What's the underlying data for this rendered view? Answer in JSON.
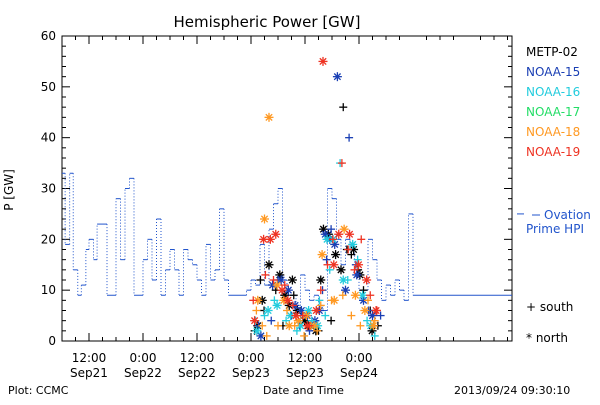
{
  "chart_data": {
    "type": "scatter",
    "title": "Hemispheric Power [GW]",
    "ylabel": "P [GW]",
    "xlabel": "Date and Time",
    "x_unit": "hours since 2013-09-21 00:00",
    "xlim": [
      6,
      106
    ],
    "ylim": [
      0,
      60
    ],
    "y_ticks": [
      0,
      10,
      20,
      30,
      40,
      50,
      60
    ],
    "x_ticks": [
      {
        "x": 12,
        "time": "12:00",
        "date": "Sep21"
      },
      {
        "x": 24,
        "time": "0:00",
        "date": "Sep22"
      },
      {
        "x": 36,
        "time": "12:00",
        "date": "Sep22"
      },
      {
        "x": 48,
        "time": "0:00",
        "date": "Sep23"
      },
      {
        "x": 60,
        "time": "12:00",
        "date": "Sep23"
      },
      {
        "x": 72,
        "time": "0:00",
        "date": "Sep24"
      }
    ],
    "grid": false,
    "legend_position": "right",
    "ovation": {
      "name": "Ovation Prime HPI",
      "label_line1": "Ovation",
      "label_line2": "Prime HPI",
      "color": "#2255cc",
      "steps": [
        [
          6.0,
          33
        ],
        [
          6.7,
          19
        ],
        [
          7.7,
          33
        ],
        [
          8.5,
          14
        ],
        [
          9.5,
          9
        ],
        [
          10.3,
          11
        ],
        [
          11.3,
          18
        ],
        [
          12.0,
          20
        ],
        [
          13.0,
          16
        ],
        [
          13.8,
          23
        ],
        [
          16.0,
          9
        ],
        [
          18.0,
          28
        ],
        [
          19.0,
          16
        ],
        [
          20.0,
          30
        ],
        [
          21.0,
          32
        ],
        [
          22.0,
          9
        ],
        [
          24.0,
          16
        ],
        [
          25.0,
          20
        ],
        [
          26.0,
          12
        ],
        [
          27.0,
          24
        ],
        [
          28.0,
          9
        ],
        [
          29.0,
          14
        ],
        [
          30.0,
          18
        ],
        [
          31.0,
          14
        ],
        [
          32.0,
          9
        ],
        [
          33.0,
          18
        ],
        [
          34.0,
          16
        ],
        [
          35.0,
          15
        ],
        [
          36.0,
          12
        ],
        [
          37.0,
          9
        ],
        [
          38.0,
          19
        ],
        [
          39.0,
          12
        ],
        [
          40.0,
          14
        ],
        [
          41.0,
          26
        ],
        [
          42.0,
          12
        ],
        [
          43.0,
          9
        ],
        [
          47.0,
          10
        ],
        [
          48.0,
          12
        ],
        [
          49.0,
          11
        ],
        [
          50.0,
          19
        ],
        [
          51.0,
          11
        ],
        [
          52.0,
          22
        ],
        [
          53.0,
          27
        ],
        [
          54.0,
          30
        ],
        [
          55.0,
          12
        ],
        [
          56.0,
          9
        ],
        [
          58.0,
          4
        ],
        [
          59.0,
          13
        ],
        [
          60.0,
          10
        ],
        [
          61.0,
          8
        ],
        [
          62.0,
          9
        ],
        [
          63.0,
          7
        ],
        [
          64.0,
          6
        ],
        [
          65.0,
          30
        ],
        [
          66.0,
          28
        ],
        [
          67.0,
          20
        ],
        [
          68.0,
          15
        ],
        [
          69.0,
          20
        ],
        [
          70.0,
          18
        ],
        [
          71.0,
          14
        ],
        [
          72.0,
          10
        ],
        [
          74.0,
          20
        ],
        [
          75.0,
          16
        ],
        [
          76.0,
          12
        ],
        [
          77.0,
          8
        ],
        [
          78.0,
          11
        ],
        [
          79.0,
          9
        ],
        [
          80.0,
          12
        ],
        [
          81.0,
          10
        ],
        [
          82.0,
          8
        ],
        [
          83.0,
          25
        ],
        [
          84.0,
          9
        ]
      ]
    },
    "series": [
      {
        "name": "METP-02",
        "color": "#000000",
        "south": [
          [
            48.8,
            2
          ],
          [
            50.1,
            12
          ],
          [
            50.9,
            6
          ],
          [
            53.5,
            10
          ],
          [
            55.1,
            3
          ],
          [
            57.5,
            9
          ],
          [
            59.5,
            5
          ],
          [
            61.3,
            3
          ],
          [
            63.0,
            2
          ],
          [
            65.8,
            4
          ],
          [
            68.5,
            46
          ],
          [
            69.3,
            18
          ],
          [
            70.3,
            17
          ],
          [
            71.8,
            14
          ],
          [
            73.0,
            10
          ],
          [
            74.5,
            6
          ],
          [
            76.2,
            3
          ]
        ],
        "north": [
          [
            49.5,
            3
          ],
          [
            50.5,
            8
          ],
          [
            52.0,
            15
          ],
          [
            54.4,
            13
          ],
          [
            55.5,
            9
          ],
          [
            56.5,
            7
          ],
          [
            57.2,
            12
          ],
          [
            58.3,
            6
          ],
          [
            59.9,
            4
          ],
          [
            60.7,
            3
          ],
          [
            62.4,
            2
          ],
          [
            63.5,
            12
          ],
          [
            64.1,
            22
          ],
          [
            65.2,
            21
          ],
          [
            66.8,
            17
          ],
          [
            68.0,
            14
          ],
          [
            70.8,
            18
          ],
          [
            72.2,
            13
          ],
          [
            74.9,
            2
          ]
        ]
      },
      {
        "name": "NOAA-15",
        "color": "#1a3fb4",
        "south": [
          [
            49.7,
            3
          ],
          [
            52.5,
            4
          ],
          [
            54.0,
            12
          ],
          [
            57.0,
            5
          ],
          [
            58.8,
            3
          ],
          [
            61.0,
            2
          ],
          [
            63.9,
            10
          ],
          [
            64.8,
            16
          ],
          [
            65.8,
            22
          ],
          [
            69.8,
            40
          ],
          [
            71.3,
            15
          ],
          [
            74.1,
            6
          ],
          [
            76.8,
            5
          ]
        ],
        "north": [
          [
            50.2,
            1
          ],
          [
            52.8,
            11
          ],
          [
            54.7,
            12
          ],
          [
            56.3,
            10
          ],
          [
            57.8,
            7
          ],
          [
            59.2,
            6
          ],
          [
            60.5,
            5
          ],
          [
            62.2,
            4
          ],
          [
            63.2,
            6
          ],
          [
            64.5,
            21
          ],
          [
            65.5,
            20
          ],
          [
            66.6,
            19
          ],
          [
            67.2,
            52
          ],
          [
            69.0,
            10
          ],
          [
            71.5,
            13
          ],
          [
            73.0,
            8
          ],
          [
            75.0,
            5
          ]
        ]
      },
      {
        "name": "NOAA-16",
        "color": "#22ccdd",
        "south": [
          [
            49.0,
            4
          ],
          [
            51.0,
            5
          ],
          [
            53.2,
            8
          ],
          [
            55.8,
            4
          ],
          [
            58.2,
            2
          ],
          [
            61.5,
            4
          ],
          [
            63.2,
            8
          ],
          [
            64.5,
            5
          ],
          [
            65.5,
            14
          ],
          [
            67.8,
            35
          ],
          [
            69.5,
            12
          ],
          [
            71.7,
            16
          ],
          [
            73.8,
            4
          ],
          [
            75.5,
            1
          ]
        ],
        "north": [
          [
            49.3,
            2
          ],
          [
            51.8,
            6
          ],
          [
            53.8,
            7
          ],
          [
            56.8,
            5
          ],
          [
            59.0,
            3
          ],
          [
            60.8,
            6
          ],
          [
            62.8,
            3
          ],
          [
            64.9,
            20
          ],
          [
            66.2,
            20
          ],
          [
            68.5,
            12
          ],
          [
            70.6,
            19
          ],
          [
            72.8,
            9
          ],
          [
            74.6,
            3
          ]
        ]
      },
      {
        "name": "NOAA-17",
        "color": "#22dd66",
        "south": [],
        "north": []
      },
      {
        "name": "NOAA-18",
        "color": "#ff9922",
        "south": [
          [
            49.2,
            6
          ],
          [
            50.5,
            3
          ],
          [
            51.5,
            1
          ],
          [
            54.0,
            3
          ],
          [
            56.0,
            6
          ],
          [
            57.7,
            3
          ],
          [
            59.8,
            1
          ],
          [
            61.2,
            3
          ],
          [
            62.7,
            2
          ],
          [
            63.5,
            7
          ],
          [
            65.9,
            8
          ],
          [
            68.4,
            9
          ],
          [
            70.3,
            5
          ],
          [
            72.3,
            3
          ],
          [
            74.0,
            8
          ],
          [
            75.5,
            4
          ]
        ],
        "north": [
          [
            49.5,
            8
          ],
          [
            51.0,
            24
          ],
          [
            52.0,
            44
          ],
          [
            53.8,
            11
          ],
          [
            55.3,
            8
          ],
          [
            56.5,
            3
          ],
          [
            58.5,
            4
          ],
          [
            60.3,
            5
          ],
          [
            62.0,
            3
          ],
          [
            63.8,
            17
          ],
          [
            66.5,
            8
          ],
          [
            68.7,
            22
          ],
          [
            71.2,
            9
          ],
          [
            73.3,
            6
          ],
          [
            75.2,
            3
          ]
        ]
      },
      {
        "name": "NOAA-19",
        "color": "#ee3322",
        "south": [
          [
            48.5,
            8
          ],
          [
            51.2,
            13
          ],
          [
            53.0,
            12
          ],
          [
            55.5,
            11
          ],
          [
            57.3,
            7
          ],
          [
            59.5,
            5
          ],
          [
            61.0,
            3
          ],
          [
            63.5,
            10
          ],
          [
            65.0,
            15
          ],
          [
            66.2,
            20
          ],
          [
            68.2,
            35
          ],
          [
            69.6,
            18
          ],
          [
            71.0,
            14
          ],
          [
            72.5,
            20
          ],
          [
            74.5,
            9
          ],
          [
            76.0,
            6
          ]
        ],
        "north": [
          [
            48.8,
            4
          ],
          [
            50.8,
            20
          ],
          [
            52.3,
            20
          ],
          [
            53.5,
            21
          ],
          [
            54.9,
            10
          ],
          [
            56.2,
            8
          ],
          [
            58.0,
            5
          ],
          [
            60.5,
            3
          ],
          [
            62.5,
            6
          ],
          [
            64.0,
            55
          ],
          [
            66.4,
            15
          ],
          [
            67.5,
            21
          ],
          [
            69.9,
            21
          ],
          [
            71.9,
            15
          ],
          [
            73.7,
            12
          ],
          [
            75.8,
            6
          ]
        ]
      }
    ],
    "marker_legend": {
      "south": "south",
      "north": "north",
      "south_symbol": "+",
      "north_symbol": "*"
    }
  },
  "footer": {
    "left": "Plot: CCMC",
    "center": "Date and Time",
    "right": "2013/09/24 09:30:10"
  }
}
